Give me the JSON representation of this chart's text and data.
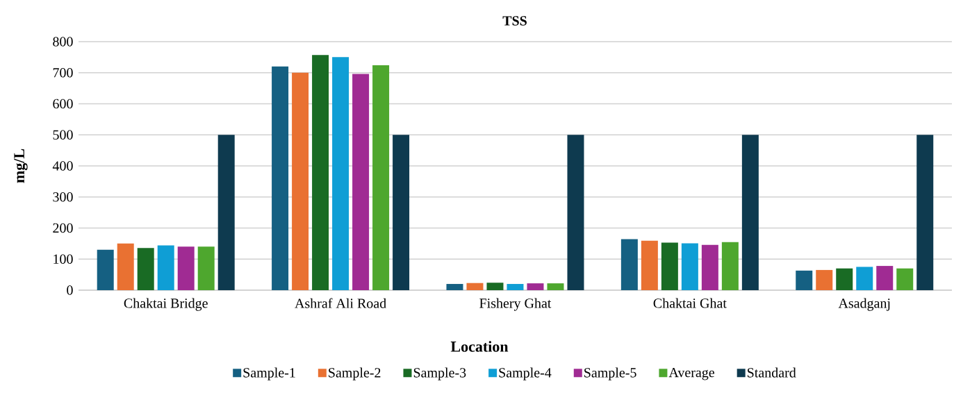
{
  "chart_data": {
    "type": "bar",
    "title": "TSS",
    "xlabel": "Location",
    "ylabel": "mg/L",
    "categories": [
      "Chaktai Bridge",
      "Ashraf Ali Road",
      "Fishery Ghat",
      "Chaktai Ghat",
      "Asadganj"
    ],
    "series": [
      {
        "name": "Sample-1",
        "color": "#156082",
        "values": [
          130,
          720,
          20,
          164,
          63
        ]
      },
      {
        "name": "Sample-2",
        "color": "#e97132",
        "values": [
          150,
          700,
          23,
          159,
          65
        ]
      },
      {
        "name": "Sample-3",
        "color": "#196b24",
        "values": [
          136,
          757,
          24,
          153,
          70
        ]
      },
      {
        "name": "Sample-4",
        "color": "#0f9ed5",
        "values": [
          144,
          750,
          20,
          151,
          75
        ]
      },
      {
        "name": "Sample-5",
        "color": "#a02b93",
        "values": [
          140,
          696,
          22,
          146,
          78
        ]
      },
      {
        "name": "Average",
        "color": "#4ea72e",
        "values": [
          140,
          724,
          22,
          155,
          70
        ]
      },
      {
        "name": "Standard",
        "color": "#0e3a4f",
        "values": [
          500,
          500,
          500,
          500,
          500
        ]
      }
    ],
    "ylim": [
      0,
      800
    ],
    "yticks": [
      0,
      100,
      200,
      300,
      400,
      500,
      600,
      700,
      800
    ],
    "grid": "y",
    "legend": "bottom"
  }
}
